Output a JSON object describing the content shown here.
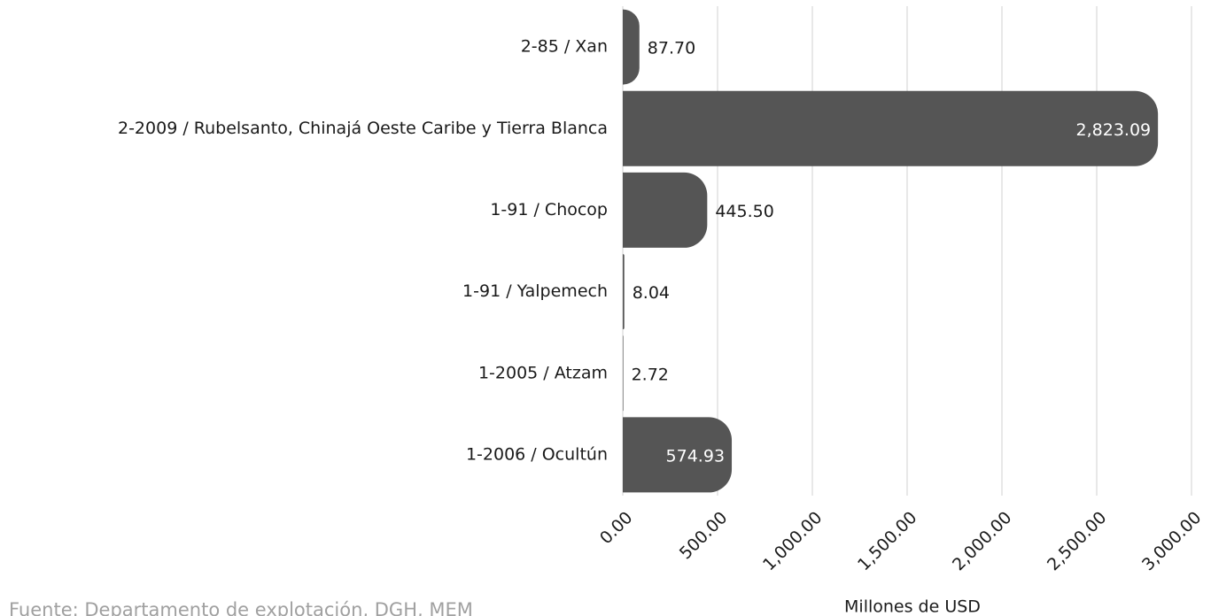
{
  "chart_data": {
    "type": "bar",
    "orientation": "horizontal",
    "categories": [
      "2-85 / Xan",
      "2-2009 / Rubelsanto, Chinajá Oeste Caribe y Tierra Blanca",
      "1-91 / Chocop",
      "1-91 / Yalpemech",
      "1-2005 / Atzam",
      "1-2006 / Ocultún"
    ],
    "values": [
      87.7,
      2823.09,
      445.5,
      8.04,
      2.72,
      574.93
    ],
    "value_labels": [
      "87.70",
      "2,823.09",
      "445.50",
      "8.04",
      "2.72",
      "574.93"
    ],
    "color": "#555555",
    "xlim": [
      0,
      3000
    ],
    "xticks": [
      {
        "value": 0,
        "label": "0.00"
      },
      {
        "value": 500,
        "label": "500.00"
      },
      {
        "value": 1000,
        "label": "1,000.00"
      },
      {
        "value": 1500,
        "label": "1,500.00"
      },
      {
        "value": 2000,
        "label": "2,000.00"
      },
      {
        "value": 2500,
        "label": "2,500.00"
      },
      {
        "value": 3000,
        "label": "3,000.00"
      }
    ],
    "xlabel": "Millones de USD",
    "grid": true,
    "source": "Fuente: Departamento de explotación, DGH, MEM"
  }
}
